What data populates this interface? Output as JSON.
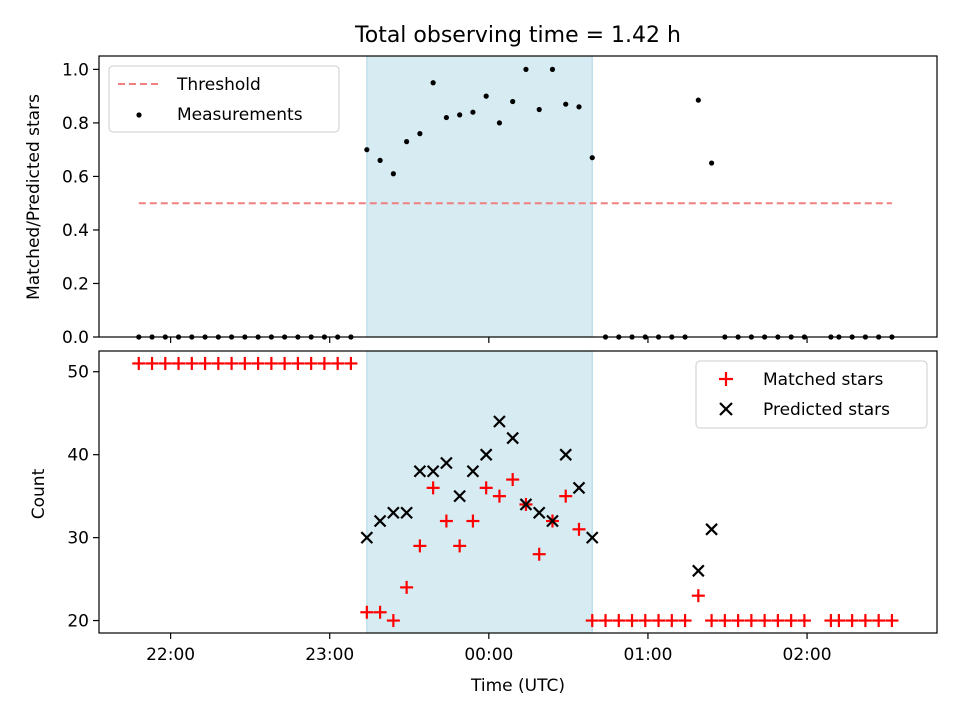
{
  "figure": {
    "title": "Total observing time = 1.42 h",
    "xlabel": "Time (UTC)",
    "xticks": [
      "22:00",
      "23:00",
      "00:00",
      "01:00",
      "02:00"
    ]
  },
  "colors": {
    "threshold": "#f08080",
    "measurements": "#000000",
    "matched": "#ff0000",
    "predicted": "#000000",
    "span": "#add8e6"
  },
  "chart_data": [
    {
      "type": "scatter",
      "ylabel": "Matched/Predicted stars",
      "ylim": [
        0,
        1.05
      ],
      "yticks": [
        "0.0",
        "0.2",
        "0.4",
        "0.6",
        "0.8",
        "1.0"
      ],
      "xlim": [
        "21:33",
        "02:49"
      ],
      "shaded_span": [
        "23:14",
        "00:39"
      ],
      "legend_position": "upper-left",
      "threshold": {
        "name": "Threshold",
        "value": 0.5,
        "x": [
          "21:48",
          "02:32"
        ]
      },
      "series": [
        {
          "name": "Measurements",
          "x": [
            "21:48",
            "21:53",
            "21:58",
            "22:03",
            "22:08",
            "22:13",
            "22:18",
            "22:23",
            "22:28",
            "22:33",
            "22:38",
            "22:43",
            "22:48",
            "22:53",
            "22:58",
            "23:03",
            "23:08",
            "23:14",
            "23:19",
            "23:24",
            "23:29",
            "23:34",
            "23:39",
            "23:44",
            "23:49",
            "23:54",
            "23:59",
            "00:04",
            "00:09",
            "00:14",
            "00:19",
            "00:24",
            "00:29",
            "00:34",
            "00:39",
            "00:44",
            "00:49",
            "00:54",
            "00:59",
            "01:04",
            "01:09",
            "01:14",
            "01:19",
            "01:24",
            "01:29",
            "01:34",
            "01:39",
            "01:44",
            "01:49",
            "01:54",
            "01:59",
            "02:09",
            "02:12",
            "02:17",
            "02:22",
            "02:27",
            "02:32"
          ],
          "y": [
            0,
            0,
            0,
            0,
            0,
            0,
            0,
            0,
            0,
            0,
            0,
            0,
            0,
            0,
            0,
            0,
            0,
            0.7,
            0.66,
            0.61,
            0.73,
            0.76,
            0.95,
            0.82,
            0.83,
            0.84,
            0.9,
            0.8,
            0.88,
            1.0,
            0.85,
            1.0,
            0.87,
            0.86,
            0.67,
            0,
            0,
            0,
            0,
            0,
            0,
            0,
            0.885,
            0.65,
            0,
            0,
            0,
            0,
            0,
            0,
            0,
            0,
            0,
            0,
            0,
            0,
            0
          ]
        }
      ]
    },
    {
      "type": "scatter",
      "ylabel": "Count",
      "ylim": [
        18.5,
        52.5
      ],
      "yticks": [
        "20",
        "30",
        "40",
        "50"
      ],
      "xlim": [
        "21:33",
        "02:49"
      ],
      "shaded_span": [
        "23:14",
        "00:39"
      ],
      "legend_position": "upper-right",
      "series": [
        {
          "name": "Matched stars",
          "x": [
            "21:48",
            "21:53",
            "21:58",
            "22:03",
            "22:08",
            "22:13",
            "22:18",
            "22:23",
            "22:28",
            "22:33",
            "22:38",
            "22:43",
            "22:48",
            "22:53",
            "22:58",
            "23:03",
            "23:08",
            "23:14",
            "23:19",
            "23:24",
            "23:29",
            "23:34",
            "23:39",
            "23:44",
            "23:49",
            "23:54",
            "23:59",
            "00:04",
            "00:09",
            "00:14",
            "00:19",
            "00:24",
            "00:29",
            "00:34",
            "00:39",
            "00:44",
            "00:49",
            "00:54",
            "00:59",
            "01:04",
            "01:09",
            "01:14",
            "01:19",
            "01:24",
            "01:29",
            "01:34",
            "01:39",
            "01:44",
            "01:49",
            "01:54",
            "01:59",
            "02:09",
            "02:12",
            "02:17",
            "02:22",
            "02:27",
            "02:32"
          ],
          "y": [
            51,
            51,
            51,
            51,
            51,
            51,
            51,
            51,
            51,
            51,
            51,
            51,
            51,
            51,
            51,
            51,
            51,
            21,
            21,
            20,
            24,
            29,
            36,
            32,
            29,
            32,
            36,
            35,
            37,
            34,
            28,
            32,
            35,
            31,
            20,
            20,
            20,
            20,
            20,
            20,
            20,
            20,
            23,
            20,
            20,
            20,
            20,
            20,
            20,
            20,
            20,
            20,
            20,
            20,
            20,
            20,
            20
          ]
        },
        {
          "name": "Predicted stars",
          "x": [
            "23:14",
            "23:19",
            "23:24",
            "23:29",
            "23:34",
            "23:39",
            "23:44",
            "23:49",
            "23:54",
            "23:59",
            "00:04",
            "00:09",
            "00:14",
            "00:19",
            "00:24",
            "00:29",
            "00:34",
            "00:39",
            "01:19",
            "01:24"
          ],
          "y": [
            30,
            32,
            33,
            33,
            38,
            38,
            39,
            35,
            38,
            40,
            44,
            42,
            34,
            33,
            32,
            40,
            36,
            30,
            26,
            31
          ]
        }
      ]
    }
  ]
}
